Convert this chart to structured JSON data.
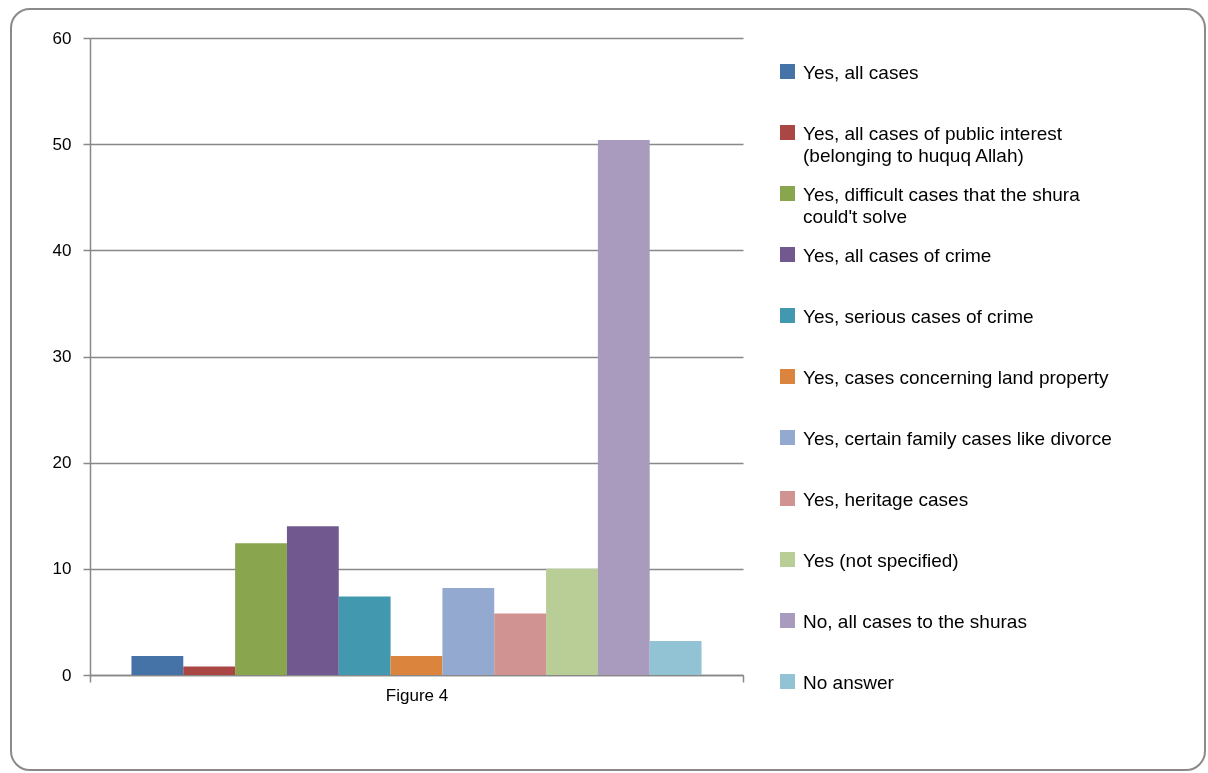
{
  "chart_data": {
    "type": "bar",
    "categories": [
      "Figure 4"
    ],
    "series": [
      {
        "name": "Yes, all cases",
        "color": "#4572a7",
        "values": [
          1.8
        ]
      },
      {
        "name": "Yes, all cases of public interest (belonging to huquq Allah)",
        "color": "#aa4643",
        "values": [
          0.8
        ]
      },
      {
        "name": "Yes, difficult cases that the shura could't solve",
        "color": "#89a54e",
        "values": [
          12.4
        ]
      },
      {
        "name": "Yes, all cases of crime",
        "color": "#71588f",
        "values": [
          14.0
        ]
      },
      {
        "name": "Yes, serious cases of crime",
        "color": "#4198af",
        "values": [
          7.4
        ]
      },
      {
        "name": "Yes, cases concerning land property",
        "color": "#db843d",
        "values": [
          1.8
        ]
      },
      {
        "name": "Yes, certain family cases like divorce",
        "color": "#93a9cf",
        "values": [
          8.2
        ]
      },
      {
        "name": "Yes, heritage cases",
        "color": "#d19392",
        "values": [
          5.8
        ]
      },
      {
        "name": "Yes (not specified)",
        "color": "#b9cd96",
        "values": [
          10.0
        ]
      },
      {
        "name": "No, all cases to the shuras",
        "color": "#a99bbd",
        "values": [
          50.4
        ]
      },
      {
        "name": "No answer",
        "color": "#91c3d5",
        "values": [
          3.2
        ]
      }
    ],
    "ylim": [
      0,
      60
    ],
    "yticks": [
      0,
      10,
      20,
      30,
      40,
      50,
      60
    ],
    "grid": "y",
    "legend": "right"
  }
}
